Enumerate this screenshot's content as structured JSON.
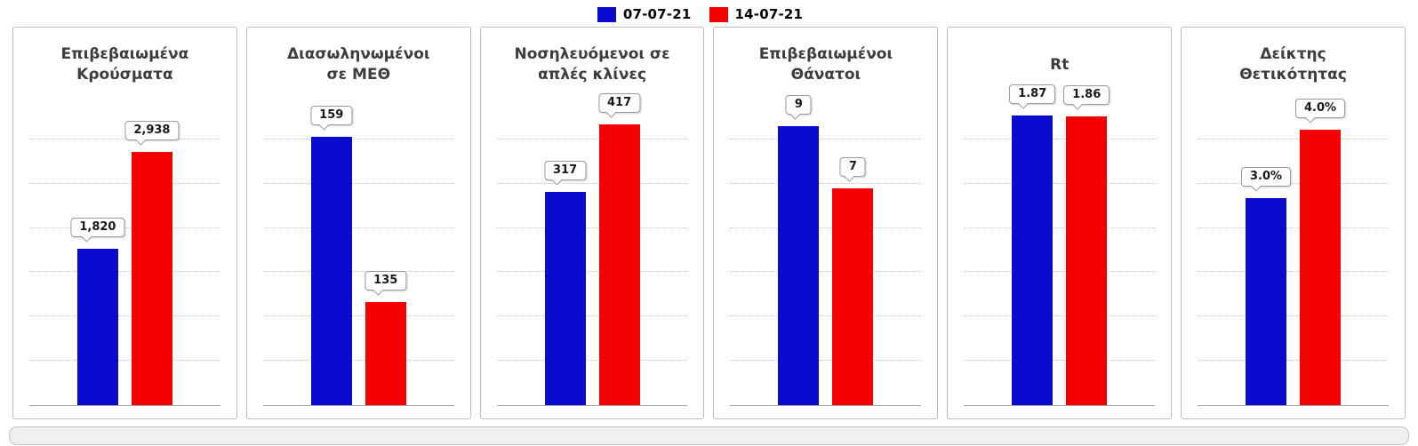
{
  "legend": {
    "position": "top",
    "items": [
      {
        "label": "07-07-21",
        "color": "#0b0bd0"
      },
      {
        "label": "14-07-21",
        "color": "#f40000"
      }
    ]
  },
  "chart_data": [
    {
      "type": "bar",
      "title": "Επιβεβαιωμένα\nΚρούσματα",
      "categories": [
        "07-07-21",
        "14-07-21"
      ],
      "values": [
        1820,
        2938
      ],
      "labels": [
        "1,820",
        "2,938"
      ],
      "ylim": [
        0,
        3600
      ],
      "grid": true
    },
    {
      "type": "bar",
      "title": "Διασωληνωμένοι\nσε ΜΕΘ",
      "categories": [
        "07-07-21",
        "14-07-21"
      ],
      "values": [
        159,
        135
      ],
      "labels": [
        "159",
        "135"
      ],
      "ylim": [
        120,
        165
      ],
      "grid": true
    },
    {
      "type": "bar",
      "title": "Νοσηλευόμενοι σε\nαπλές κλίνες",
      "categories": [
        "07-07-21",
        "14-07-21"
      ],
      "values": [
        317,
        417
      ],
      "labels": [
        "317",
        "417"
      ],
      "ylim": [
        0,
        460
      ],
      "grid": true
    },
    {
      "type": "bar",
      "title": "Επιβεβαιωμένοι\nΘάνατοι",
      "categories": [
        "07-07-21",
        "14-07-21"
      ],
      "values": [
        9,
        7
      ],
      "labels": [
        "9",
        "7"
      ],
      "ylim": [
        0,
        10
      ],
      "grid": true
    },
    {
      "type": "bar",
      "title": "Rt",
      "categories": [
        "07-07-21",
        "14-07-21"
      ],
      "values": [
        1.87,
        1.86
      ],
      "labels": [
        "1.87",
        "1.86"
      ],
      "ylim": [
        0,
        2
      ],
      "grid": true
    },
    {
      "type": "bar",
      "title": "Δείκτης\nΘετικότητας",
      "categories": [
        "07-07-21",
        "14-07-21"
      ],
      "values": [
        3.0,
        4.0
      ],
      "labels": [
        "3.0%",
        "4.0%"
      ],
      "ylim": [
        0,
        4.5
      ],
      "grid": true
    }
  ]
}
